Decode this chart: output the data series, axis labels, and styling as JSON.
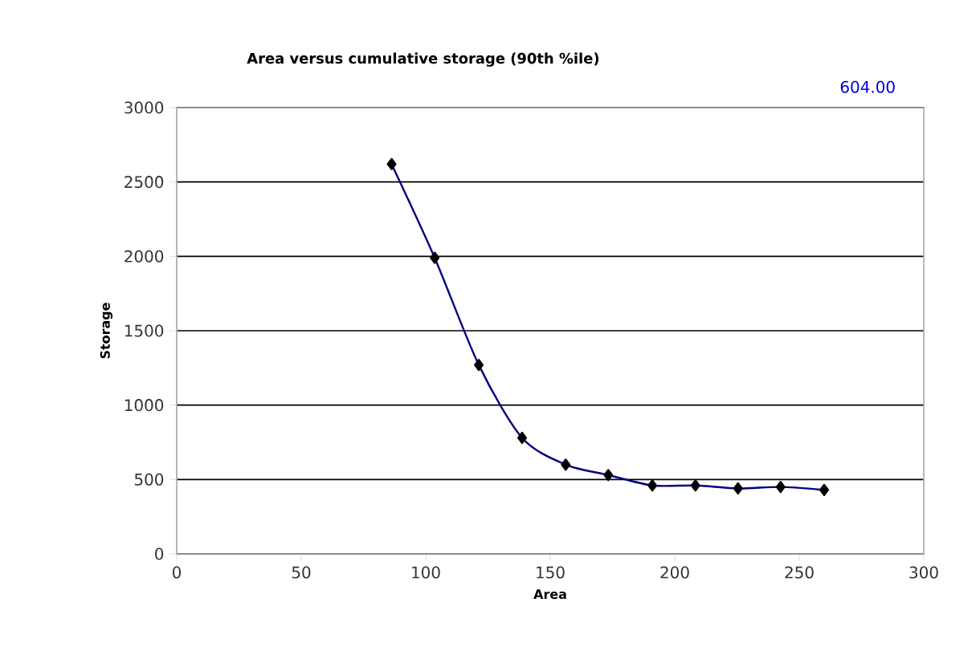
{
  "chart_data": {
    "type": "line",
    "title": "Area versus cumulative storage (90th %ile)",
    "xlabel": "Area",
    "ylabel": "Storage",
    "annotations": [
      "604.00"
    ],
    "x": [
      86.3,
      103.6,
      121.3,
      138.7,
      156.2,
      173.3,
      191,
      208.3,
      225.4,
      242.5,
      260
    ],
    "series": [
      {
        "color": "#000080",
        "values": [
          2620,
          1990,
          1270,
          780,
          600,
          530,
          460,
          460,
          440,
          450,
          430
        ]
      }
    ],
    "xlim": [
      0,
      300
    ],
    "ylim": [
      0,
      3000
    ],
    "xticks": [
      0,
      50,
      100,
      150,
      200,
      250,
      300
    ],
    "yticks": [
      0,
      500,
      1000,
      1500,
      2000,
      2500,
      3000
    ],
    "grid": "y",
    "marker": "diamond",
    "line_style": "solid"
  }
}
